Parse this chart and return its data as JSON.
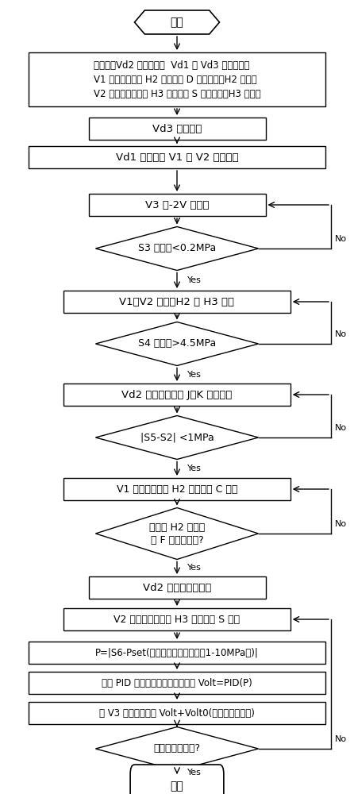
{
  "background_color": "#ffffff",
  "nodes": [
    {
      "id": "start",
      "type": "hexagon",
      "text": "开始",
      "fontsize": 10
    },
    {
      "id": "init",
      "type": "rect",
      "text": "初始化：Vd2 失电关闭，  Vd1 和 Vd3 失电开启，\nV1 失电，切断阀 H2 的压紧舱 D 充气压紧，H2 关闭；\nV2 失电，总调压阀 H3 的压紧舱 S 充气压紧，H3 关闭。",
      "fontsize": 8.5,
      "multiline": true
    },
    {
      "id": "vd3",
      "type": "rect",
      "text": "Vd3 得电关闭",
      "fontsize": 9.5
    },
    {
      "id": "vd1",
      "type": "rect",
      "text": "Vd1 失电，通 V1 和 V2 操作气源",
      "fontsize": 9.5
    },
    {
      "id": "v3sig",
      "type": "rect",
      "text": "V3 给-2V 电信号",
      "fontsize": 9.5
    },
    {
      "id": "s3",
      "type": "diamond",
      "text": "S3 压力值<0.2MPa",
      "fontsize": 9
    },
    {
      "id": "v1v2",
      "type": "rect",
      "text": "V1、V2 失电，H2 和 H3 关闭",
      "fontsize": 9.5
    },
    {
      "id": "s4",
      "type": "diamond",
      "text": "S4 压力值>4.5MPa",
      "fontsize": 9
    },
    {
      "id": "vd2on",
      "type": "rect",
      "text": "Vd2 得电开启，向 J、K 充开衡气",
      "fontsize": 9.5
    },
    {
      "id": "s5s2",
      "type": "diamond",
      "text": "|S5-S2| <1MPa",
      "fontsize": 9
    },
    {
      "id": "v1h2",
      "type": "rect",
      "text": "V1 得电，切断阀 H2 的开启舱 C 充气",
      "fontsize": 9
    },
    {
      "id": "h2open",
      "type": "diamond",
      "text": "切断阀 H2 全开指\n示 F 信号为真吗?",
      "fontsize": 9
    },
    {
      "id": "vd2off",
      "type": "rect",
      "text": "Vd2 失电，断平衡气",
      "fontsize": 9.5
    },
    {
      "id": "v2on",
      "type": "rect",
      "text": "V2 得电，总调压阀 H3 的压紧舱 S 放气",
      "fontsize": 9
    },
    {
      "id": "pset",
      "type": "rect",
      "text": "P=|S6-Pset(总调压阀压力设定值（1-10MPa）)|",
      "fontsize": 8.5
    },
    {
      "id": "pid",
      "type": "rect",
      "text": "经过 PID 调节控制器计算输出电压 Volt=PID(P)",
      "fontsize": 8.5
    },
    {
      "id": "v3in",
      "type": "rect",
      "text": "向 V3 输入控制电压 Volt+Volt0(电液伺服阀零偏)",
      "fontsize": 8.5
    },
    {
      "id": "close",
      "type": "diamond",
      "text": "执行关闭指令吗?",
      "fontsize": 9
    },
    {
      "id": "end",
      "type": "rounded_rect",
      "text": "结束",
      "fontsize": 10
    }
  ]
}
